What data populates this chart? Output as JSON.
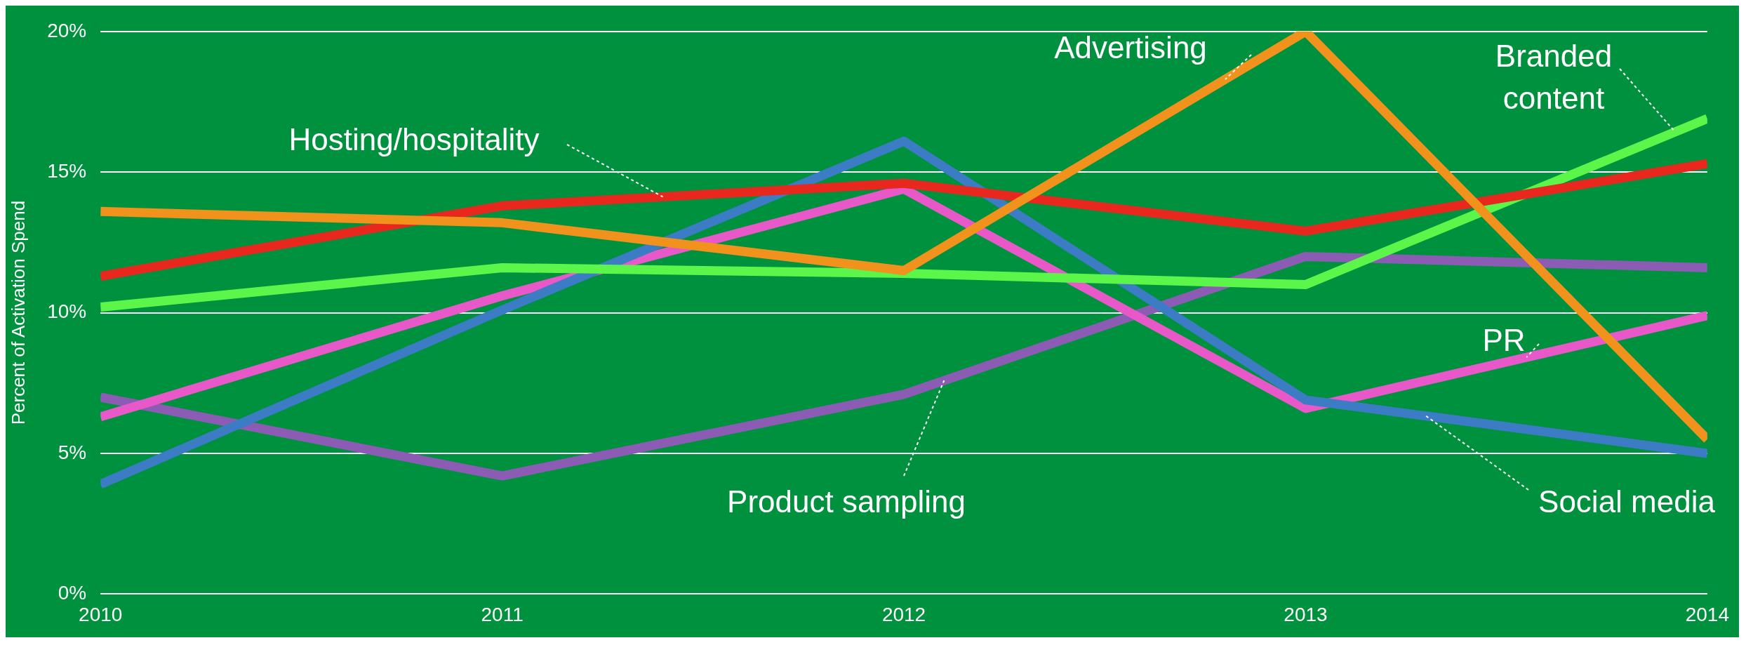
{
  "chart_data": {
    "type": "line",
    "ylabel": "Percent of Activation Spend",
    "x": [
      2010,
      2011,
      2012,
      2013,
      2014
    ],
    "xlim": [
      2010,
      2014
    ],
    "xticks": [
      2010,
      2011,
      2012,
      2013,
      2014
    ],
    "ylim": [
      0,
      20
    ],
    "yticks": [
      {
        "value": 0,
        "label": "0%"
      },
      {
        "value": 5,
        "label": "5%"
      },
      {
        "value": 10,
        "label": "10%"
      },
      {
        "value": 15,
        "label": "15%"
      },
      {
        "value": 20,
        "label": "20%"
      }
    ],
    "grid": "y",
    "legend": false,
    "marker": "none",
    "line_style": "solid",
    "series": [
      {
        "name": "Advertising",
        "color": "#f0921c",
        "values": [
          13.6,
          13.2,
          11.5,
          20.0,
          5.5
        ]
      },
      {
        "name": "Hosting/hospitality",
        "color": "#e8281e",
        "values": [
          11.3,
          13.8,
          14.6,
          12.9,
          15.3
        ]
      },
      {
        "name": "Branded content",
        "color": "#5cf54a",
        "values": [
          10.2,
          11.6,
          11.4,
          11.0,
          16.9
        ]
      },
      {
        "name": "Social media",
        "color": "#3c7cc4",
        "values": [
          3.9,
          10.1,
          16.1,
          6.9,
          5.0
        ]
      },
      {
        "name": "PR",
        "color": "#e858c8",
        "values": [
          6.3,
          10.6,
          14.4,
          6.6,
          9.9
        ]
      },
      {
        "name": "Product sampling",
        "color": "#8c5cb4",
        "values": [
          7.0,
          4.2,
          7.1,
          12.0,
          11.6
        ]
      }
    ]
  }
}
